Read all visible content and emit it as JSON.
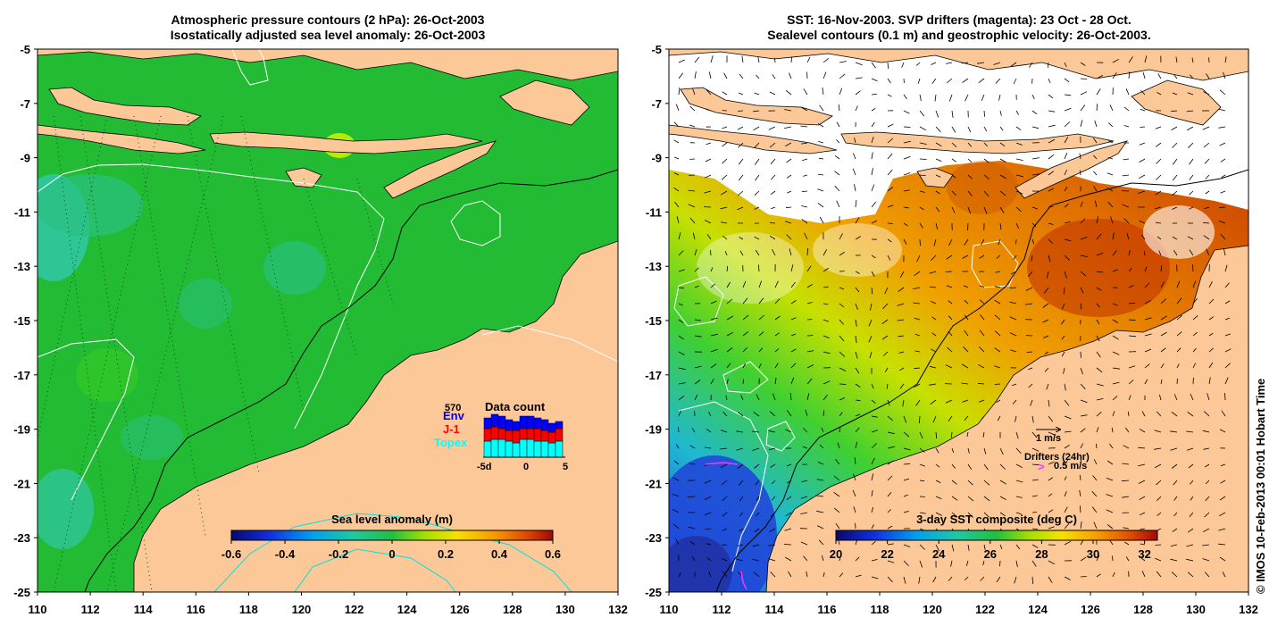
{
  "left_map": {
    "title_line1": "Atmospheric pressure contours (2 hPa): 26-Oct-2003",
    "title_line2": "Isostatically adjusted sea level anomaly: 26-Oct-2003",
    "lon_range": [
      110,
      132
    ],
    "lat_range": [
      -25,
      -5
    ],
    "x_ticks": [
      "110",
      "112",
      "114",
      "116",
      "118",
      "120",
      "122",
      "124",
      "126",
      "128",
      "130",
      "132"
    ],
    "y_ticks": [
      "-5",
      "-7",
      "-9",
      "-11",
      "-13",
      "-15",
      "-17",
      "-19",
      "-21",
      "-23",
      "-25"
    ],
    "colorbar": {
      "title": "Sea level anomaly (m)",
      "range": [
        -0.6,
        0.6
      ],
      "ticks": [
        "-0.6",
        "-0.4",
        "-0.2",
        "0",
        "0.2",
        "0.4",
        "0.6"
      ]
    },
    "data_count": {
      "title": "Data count",
      "max_label": "570",
      "x_ticks": [
        "-5d",
        "0",
        "5"
      ],
      "series": [
        {
          "name": "Env",
          "color": "#0000ff"
        },
        {
          "name": "J-1",
          "color": "#ff0000"
        },
        {
          "name": "Topex",
          "color": "#00ffff"
        }
      ]
    }
  },
  "right_map": {
    "title_line1": "SST: 16-Nov-2003. SVP drifters (magenta): 23 Oct - 28 Oct.",
    "title_line2": "Sealevel contours (0.1 m) and geostrophic velocity: 26-Oct-2003.",
    "lon_range": [
      110,
      132
    ],
    "lat_range": [
      -25,
      -5
    ],
    "x_ticks": [
      "110",
      "112",
      "114",
      "116",
      "118",
      "120",
      "122",
      "124",
      "126",
      "128",
      "130",
      "132"
    ],
    "y_ticks": [
      "-5",
      "-7",
      "-9",
      "-11",
      "-13",
      "-15",
      "-17",
      "-19",
      "-21",
      "-23",
      "-25"
    ],
    "colorbar": {
      "title": "3-day SST composite (deg C)",
      "range": [
        20,
        32.5
      ],
      "ticks": [
        "20",
        "22",
        "24",
        "26",
        "28",
        "30",
        "32"
      ]
    },
    "velocity_scale_label": "1 m/s",
    "drifters_label": "Drifters (24hr)",
    "drifters_scale_label": "0.5 m/s",
    "drifter_glyph": ">"
  },
  "credit": "© IMOS 10-Feb-2013 00:01 Hobart Time",
  "colors": {
    "land": "#fcc898",
    "sea_green": "#22bb33",
    "magenta": "#ff33ff"
  }
}
